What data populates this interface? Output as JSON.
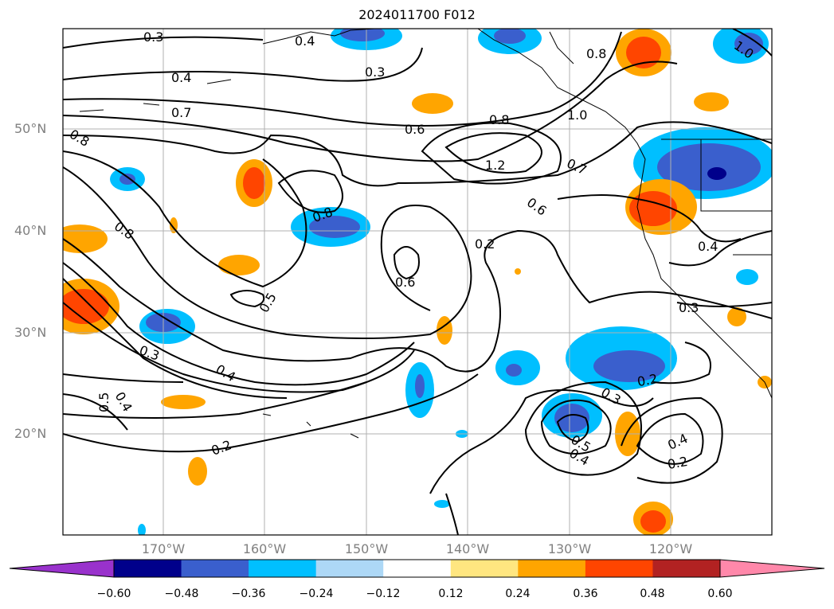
{
  "title": "2024011700 F012",
  "map": {
    "lat_labels": [
      "50°N",
      "40°N",
      "30°N",
      "20°N"
    ],
    "lon_labels": [
      "170°W",
      "160°W",
      "150°W",
      "140°W",
      "130°W",
      "120°W"
    ],
    "contour_labels": [
      "0.3",
      "0.4",
      "0.7",
      "0.8",
      "0.3",
      "0.6",
      "0.8",
      "1.0",
      "1.2",
      "0.7",
      "0.6",
      "0.8",
      "0.8",
      "0.2",
      "0.6",
      "0.4",
      "0.5",
      "0.3",
      "0.4",
      "0.2",
      "0.5",
      "0.4",
      "0.3",
      "0.2",
      "0.5",
      "0.4",
      "0.4",
      "0.2",
      "0.3",
      "0.8",
      "1.0",
      "0.4"
    ]
  },
  "colorbar": {
    "ticks": [
      "−0.60",
      "−0.48",
      "−0.36",
      "−0.24",
      "−0.12",
      "0.12",
      "0.24",
      "0.36",
      "0.48",
      "0.60"
    ],
    "colors": [
      "#9932cc",
      "#00008b",
      "#3a5fcd",
      "#00bfff",
      "#add8f6",
      "#ffffff",
      "#ffe680",
      "#ffa500",
      "#ff4500",
      "#b22222",
      "#ff88aa"
    ]
  }
}
